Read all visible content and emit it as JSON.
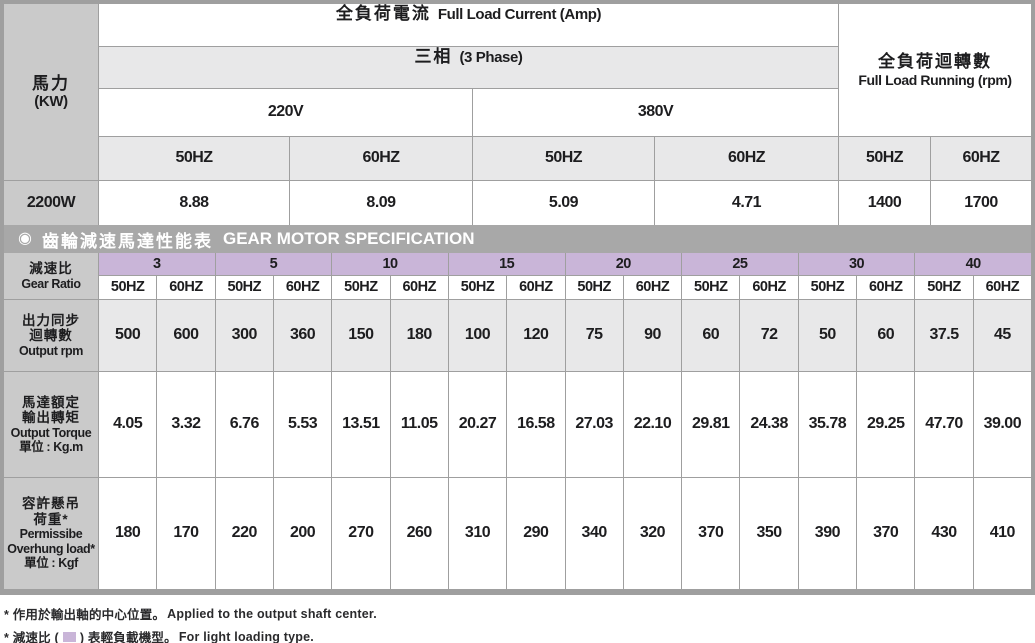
{
  "colors": {
    "light_load_purple": "#c9b5d8",
    "header_gray": "#cacaca",
    "banner_gray": "#a8a8a8"
  },
  "current_table": {
    "hp_zh": "馬力",
    "hp_en": "(KW)",
    "title_zh": "全負荷電流",
    "title_en": "Full Load Current (Amp)",
    "phase_zh": "三相",
    "phase_en": "(3 Phase)",
    "voltage_220": "220V",
    "voltage_380": "380V",
    "freq_headers": [
      "50HZ",
      "60HZ",
      "50HZ",
      "60HZ",
      "50HZ",
      "60HZ"
    ],
    "running_zh": "全負荷迴轉數",
    "running_en": "Full Load Running (rpm)",
    "model": "2200W",
    "values": [
      "8.88",
      "8.09",
      "5.09",
      "4.71",
      "1400",
      "1700"
    ]
  },
  "banner": {
    "bullet": "◉",
    "zh": "齒輪減速馬達性能表",
    "en": "GEAR MOTOR SPECIFICATION"
  },
  "spec_table": {
    "gear_ratio_zh": "減速比",
    "gear_ratio_en": "Gear Ratio",
    "ratios": [
      "3",
      "5",
      "10",
      "15",
      "20",
      "25",
      "30",
      "40"
    ],
    "hz_headers": [
      "50HZ",
      "60HZ",
      "50HZ",
      "60HZ",
      "50HZ",
      "60HZ",
      "50HZ",
      "60HZ",
      "50HZ",
      "60HZ",
      "50HZ",
      "60HZ",
      "50HZ",
      "60HZ",
      "50HZ",
      "60HZ"
    ],
    "rows": [
      {
        "label": [
          "出力同步",
          "迴轉數",
          "Output rpm"
        ],
        "values": [
          "500",
          "600",
          "300",
          "360",
          "150",
          "180",
          "100",
          "120",
          "75",
          "90",
          "60",
          "72",
          "50",
          "60",
          "37.5",
          "45"
        ]
      },
      {
        "label": [
          "馬達額定",
          "輸出轉矩",
          "Output Torque",
          "單位 : Kg.m"
        ],
        "values": [
          "4.05",
          "3.32",
          "6.76",
          "5.53",
          "13.51",
          "11.05",
          "20.27",
          "16.58",
          "27.03",
          "22.10",
          "29.81",
          "24.38",
          "35.78",
          "29.25",
          "47.70",
          "39.00"
        ]
      },
      {
        "label": [
          "容許懸吊",
          "荷重*",
          "Permissibe",
          "Overhung load*",
          "單位 : Kgf"
        ],
        "values": [
          "180",
          "170",
          "220",
          "200",
          "270",
          "260",
          "310",
          "290",
          "340",
          "320",
          "370",
          "350",
          "390",
          "370",
          "430",
          "410"
        ]
      }
    ]
  },
  "notes": [
    {
      "zh": "* 作用於輸出軸的中心位置。",
      "en": "Applied to the output shaft center."
    },
    {
      "zh_pre": "* 減速比 (",
      "zh_post": ") 表輕負載機型。",
      "en": "For light loading type."
    }
  ]
}
